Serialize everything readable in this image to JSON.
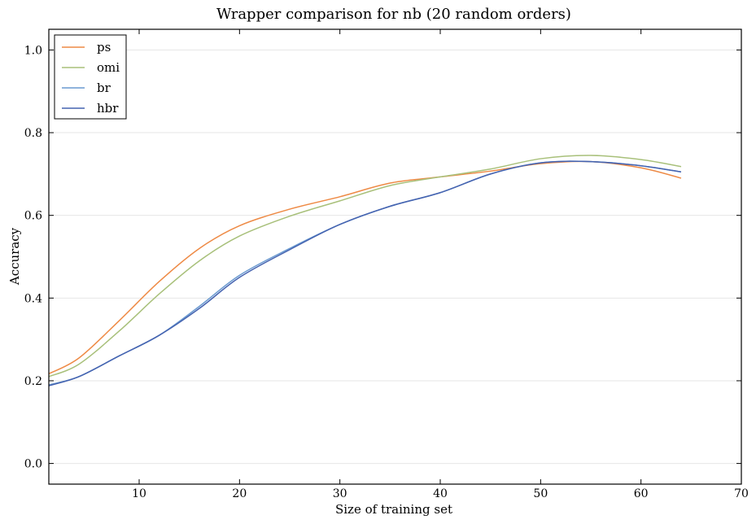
{
  "chart_data": {
    "type": "line",
    "title": "Wrapper comparison for nb (20 random orders)",
    "xlabel": "Size of training set",
    "ylabel": "Accuracy",
    "xlim": [
      1,
      70
    ],
    "ylim": [
      -0.05,
      1.05
    ],
    "xticks": [
      10,
      20,
      30,
      40,
      50,
      60,
      70
    ],
    "yticks": [
      0.0,
      0.2,
      0.4,
      0.6,
      0.8,
      1.0
    ],
    "xtick_labels": [
      "10",
      "20",
      "30",
      "40",
      "50",
      "60",
      "70"
    ],
    "ytick_labels": [
      "0.0",
      "0.2",
      "0.4",
      "0.6",
      "0.8",
      "1.0"
    ],
    "grid": "horizontal",
    "legend_position": "top-left",
    "x": [
      1,
      4,
      8,
      12,
      16,
      20,
      25,
      30,
      35,
      40,
      45,
      50,
      55,
      60,
      64
    ],
    "series": [
      {
        "name": "ps",
        "color": "#ee8a45",
        "values": [
          0.217,
          0.255,
          0.345,
          0.44,
          0.52,
          0.575,
          0.615,
          0.645,
          0.678,
          0.693,
          0.707,
          0.725,
          0.73,
          0.715,
          0.69
        ]
      },
      {
        "name": "omi",
        "color": "#a8c07a",
        "values": [
          0.21,
          0.24,
          0.32,
          0.41,
          0.49,
          0.55,
          0.598,
          0.635,
          0.672,
          0.693,
          0.712,
          0.737,
          0.745,
          0.735,
          0.718
        ]
      },
      {
        "name": "br",
        "color": "#6a9ad0",
        "values": [
          0.19,
          0.21,
          0.26,
          0.31,
          0.38,
          0.455,
          0.52,
          0.578,
          0.622,
          0.655,
          0.7,
          0.727,
          0.73,
          0.72,
          0.705
        ]
      },
      {
        "name": "hbr",
        "color": "#4563b0",
        "values": [
          0.188,
          0.21,
          0.26,
          0.31,
          0.375,
          0.45,
          0.517,
          0.578,
          0.622,
          0.655,
          0.7,
          0.727,
          0.73,
          0.72,
          0.705
        ]
      }
    ]
  }
}
